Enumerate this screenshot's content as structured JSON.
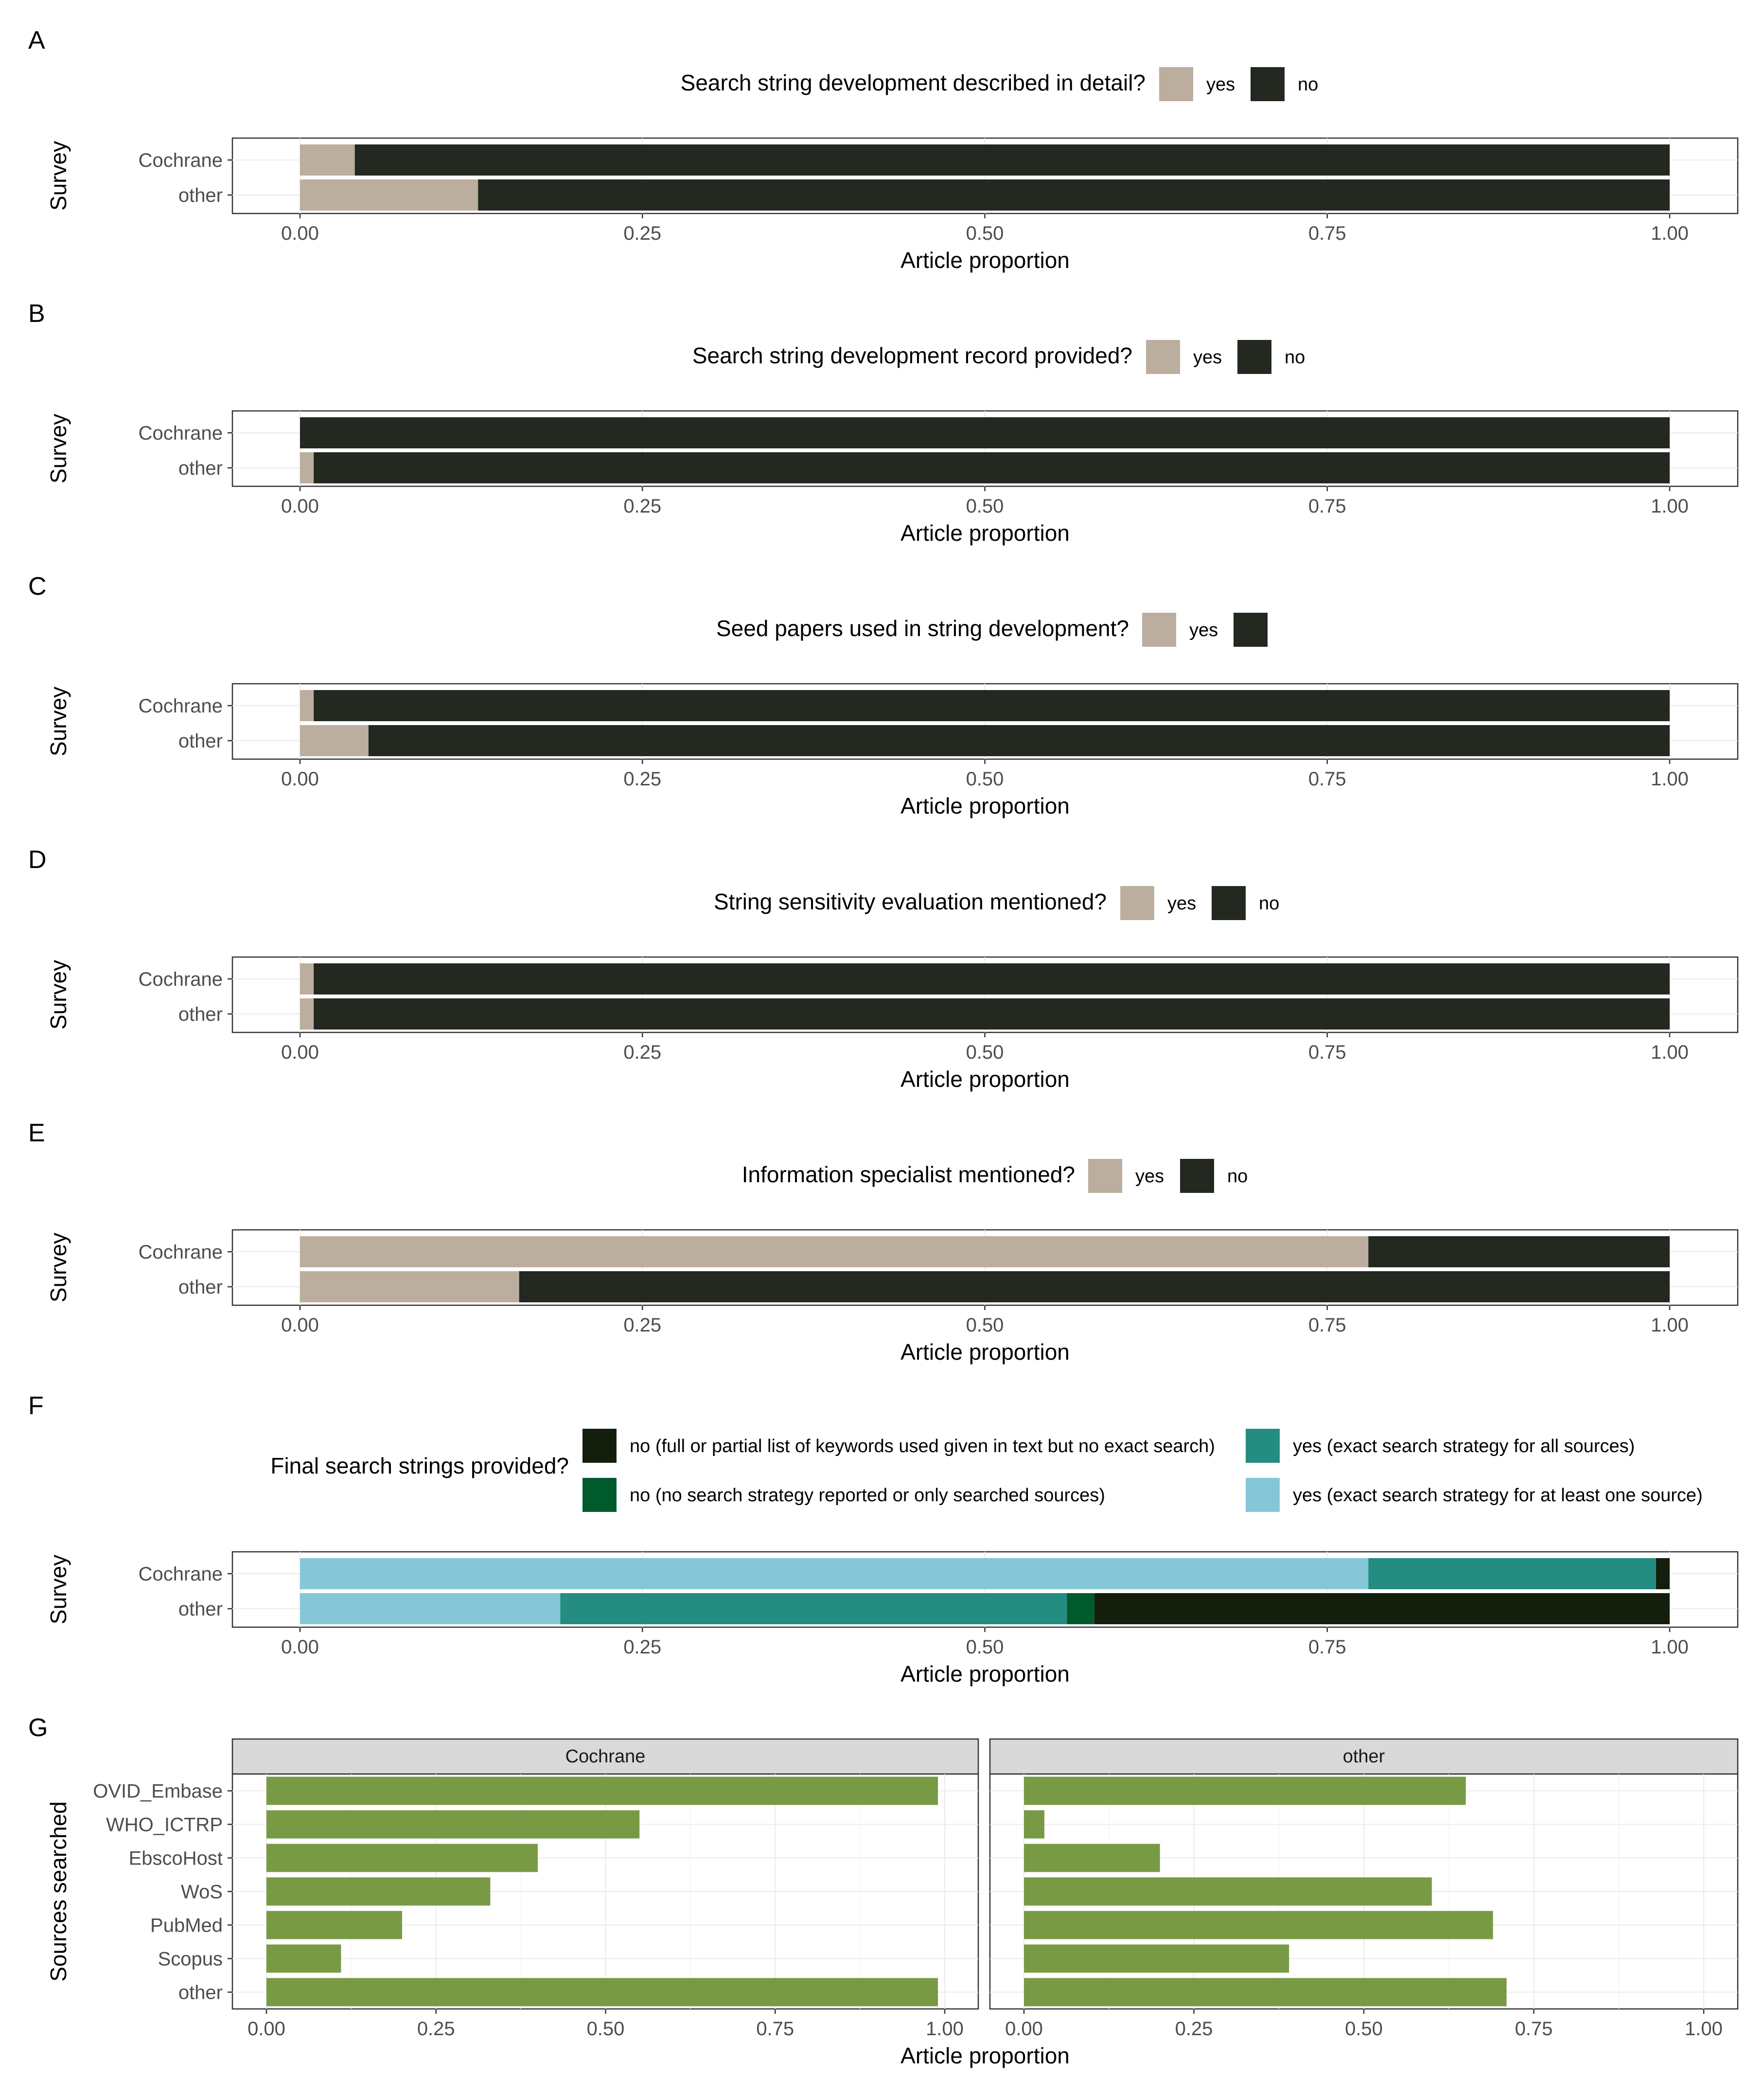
{
  "colors": {
    "yes": "#bbae9e",
    "no": "#232820",
    "f_no_keywords": "#141e0d",
    "f_no_strategy": "#005a2c",
    "f_yes_all": "#248c80",
    "f_yes_one": "#86c7d7",
    "sources_bar": "#789a45",
    "strip_bg": "#d9d9d9"
  },
  "x_axis_label": "Article proportion",
  "y_axis_label_survey": "Survey",
  "y_axis_label_sources": "Sources searched",
  "x_ticks": [
    "0.00",
    "0.25",
    "0.50",
    "0.75",
    "1.00"
  ],
  "chart_data": [
    {
      "panel": "A",
      "type": "bar",
      "stacked": true,
      "orientation": "horizontal",
      "title": "Search string development described in detail?",
      "categories": [
        "Cochrane",
        "other"
      ],
      "series": [
        {
          "name": "yes",
          "color_key": "yes",
          "values": [
            0.04,
            0.13
          ]
        },
        {
          "name": "no",
          "color_key": "no",
          "values": [
            0.96,
            0.87
          ]
        }
      ],
      "xlabel": "Article proportion",
      "ylabel": "Survey",
      "xlim": [
        0,
        1
      ],
      "legend": "top"
    },
    {
      "panel": "B",
      "type": "bar",
      "stacked": true,
      "orientation": "horizontal",
      "title": "Search string development record provided?",
      "categories": [
        "Cochrane",
        "other"
      ],
      "series": [
        {
          "name": "yes",
          "color_key": "yes",
          "values": [
            0.0,
            0.01
          ]
        },
        {
          "name": "no",
          "color_key": "no",
          "values": [
            1.0,
            0.99
          ]
        }
      ],
      "xlabel": "Article proportion",
      "ylabel": "Survey",
      "xlim": [
        0,
        1
      ],
      "legend": "top"
    },
    {
      "panel": "C",
      "type": "bar",
      "stacked": true,
      "orientation": "horizontal",
      "title": "Seed papers used in string development?",
      "categories": [
        "Cochrane",
        "other"
      ],
      "series": [
        {
          "name": "yes",
          "color_key": "yes",
          "values": [
            0.01,
            0.05
          ]
        },
        {
          "name": "",
          "color_key": "no",
          "values": [
            0.99,
            0.95
          ]
        }
      ],
      "xlabel": "Article proportion",
      "ylabel": "Survey",
      "xlim": [
        0,
        1
      ],
      "legend": "top"
    },
    {
      "panel": "D",
      "type": "bar",
      "stacked": true,
      "orientation": "horizontal",
      "title": "String sensitivity evaluation mentioned?",
      "categories": [
        "Cochrane",
        "other"
      ],
      "series": [
        {
          "name": "yes",
          "color_key": "yes",
          "values": [
            0.01,
            0.01
          ]
        },
        {
          "name": "no",
          "color_key": "no",
          "values": [
            0.99,
            0.99
          ]
        }
      ],
      "xlabel": "Article proportion",
      "ylabel": "Survey",
      "xlim": [
        0,
        1
      ],
      "legend": "top"
    },
    {
      "panel": "E",
      "type": "bar",
      "stacked": true,
      "orientation": "horizontal",
      "title": "Information specialist mentioned?",
      "categories": [
        "Cochrane",
        "other"
      ],
      "series": [
        {
          "name": "yes",
          "color_key": "yes",
          "values": [
            0.78,
            0.16
          ]
        },
        {
          "name": "no",
          "color_key": "no",
          "values": [
            0.22,
            0.84
          ]
        }
      ],
      "xlabel": "Article proportion",
      "ylabel": "Survey",
      "xlim": [
        0,
        1
      ],
      "legend": "top"
    },
    {
      "panel": "F",
      "type": "bar",
      "stacked": true,
      "orientation": "horizontal",
      "title": "Final search strings provided?",
      "categories": [
        "Cochrane",
        "other"
      ],
      "series": [
        {
          "name": "yes (exact search strategy for at least one source)",
          "color_key": "f_yes_one",
          "values": [
            0.78,
            0.19
          ]
        },
        {
          "name": "yes (exact search strategy for all sources)",
          "color_key": "f_yes_all",
          "values": [
            0.21,
            0.37
          ]
        },
        {
          "name": "no (no search strategy reported or only searched sources)",
          "color_key": "f_no_strategy",
          "values": [
            0.0,
            0.02
          ]
        },
        {
          "name": "no (full or partial list of keywords used given in text but no exact search)",
          "color_key": "f_no_keywords",
          "values": [
            0.01,
            0.42
          ]
        }
      ],
      "legend_order": [
        "no (full or partial list of keywords used given in text but no exact search)",
        "yes (exact search strategy for all sources)",
        "no (no search strategy reported or only searched sources)",
        "yes (exact search strategy for at least one source)"
      ],
      "xlabel": "Article proportion",
      "ylabel": "Survey",
      "xlim": [
        0,
        1
      ],
      "legend": "top"
    },
    {
      "panel": "G",
      "type": "bar",
      "orientation": "horizontal",
      "faceted": true,
      "categories": [
        "OVID_Embase",
        "WHO_ICTRP",
        "EbscoHost",
        "WoS",
        "PubMed",
        "Scopus",
        "other"
      ],
      "facets": [
        {
          "name": "Cochrane",
          "values": [
            0.99,
            0.55,
            0.4,
            0.33,
            0.2,
            0.11,
            0.99
          ]
        },
        {
          "name": "other",
          "values": [
            0.65,
            0.03,
            0.2,
            0.6,
            0.69,
            0.39,
            0.71
          ]
        }
      ],
      "xlabel": "Article proportion",
      "ylabel": "Sources searched",
      "xlim": [
        0,
        1
      ],
      "grid": true
    }
  ]
}
